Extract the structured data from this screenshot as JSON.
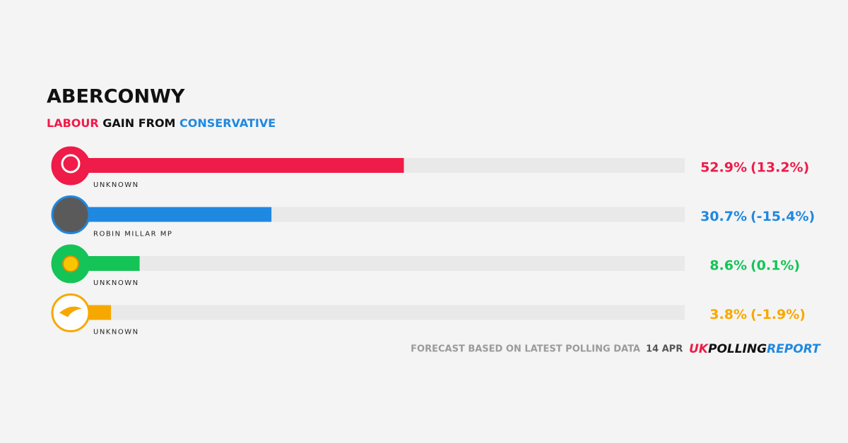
{
  "chart_data": {
    "type": "bar",
    "orientation": "horizontal",
    "title": "ABERCONWY",
    "subtitle": {
      "winner": "LABOUR",
      "middle": "GAIN FROM",
      "loser": "CONSERVATIVE"
    },
    "categories": [
      "UNKNOWN",
      "ROBIN MILLAR MP",
      "UNKNOWN",
      "UNKNOWN"
    ],
    "values": [
      52.9,
      30.7,
      8.6,
      3.8
    ],
    "value_labels": [
      "52.9%",
      "30.7%",
      "8.6%",
      "3.8%"
    ],
    "change_values": [
      13.2,
      -15.4,
      0.1,
      -1.9
    ],
    "change_labels": [
      "(13.2%)",
      "(-15.4%)",
      "(0.1%)",
      "(-1.9%)"
    ],
    "colors": [
      "#ef1b48",
      "#1f88e0",
      "#14c457",
      "#f7a800"
    ],
    "xlim": [
      0,
      100
    ],
    "footer": {
      "note": "FORECAST BASED ON LATEST POLLING DATA",
      "date": "14 APR",
      "brand": [
        "UK",
        "POLLING",
        "REPORT"
      ]
    }
  }
}
